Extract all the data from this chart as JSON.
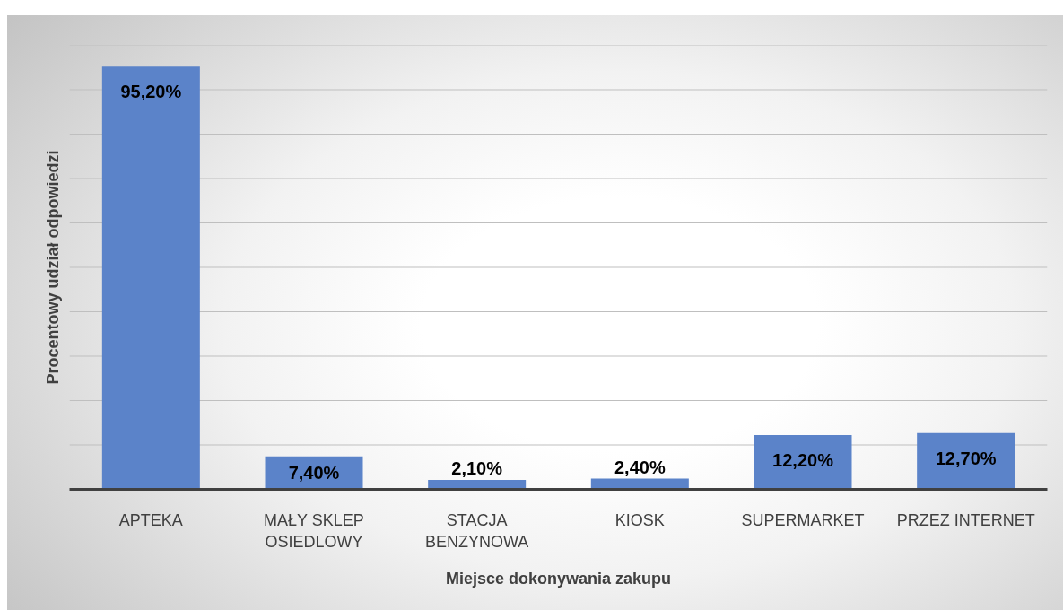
{
  "chart_data": {
    "type": "bar",
    "xlabel": "Miejsce dokonywania zakupu",
    "ylabel": "Procentowy udział odpowiedzi",
    "categories": [
      "APTEKA",
      "MAŁY SKLEP OSIEDLOWY",
      "STACJA BENZYNOWA",
      "KIOSK",
      "SUPERMARKET",
      "PRZEZ INTERNET"
    ],
    "values": [
      95.2,
      7.4,
      2.1,
      2.4,
      12.2,
      12.7
    ],
    "value_labels": [
      "95,20%",
      "7,40%",
      "2,10%",
      "2,40%",
      "12,20%",
      "12,70%"
    ],
    "color": "#5b83c9",
    "ylim": [
      0,
      100
    ],
    "yticks": [
      {
        "value": 0,
        "label": null
      },
      {
        "value": 10,
        "label": null
      },
      {
        "value": 20,
        "label": null
      },
      {
        "value": 30,
        "label": null
      },
      {
        "value": 40,
        "label": null
      },
      {
        "value": 50,
        "label": null
      },
      {
        "value": 60,
        "label": null
      },
      {
        "value": 70,
        "label": null
      },
      {
        "value": 80,
        "label": null
      },
      {
        "value": 90,
        "label": null
      },
      {
        "value": 100,
        "label": null
      }
    ],
    "grid": "y",
    "tick_labels": "x"
  }
}
